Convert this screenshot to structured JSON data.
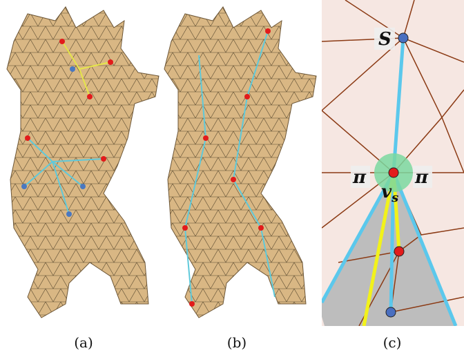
{
  "panels": [
    {
      "label": "(a)"
    },
    {
      "label": "(b)"
    },
    {
      "label": "(c)",
      "annotations": {
        "source": "S",
        "left_angle": "π",
        "right_angle": "π",
        "vertex": {
          "symbol": "v",
          "subscript": "s"
        }
      }
    }
  ]
}
